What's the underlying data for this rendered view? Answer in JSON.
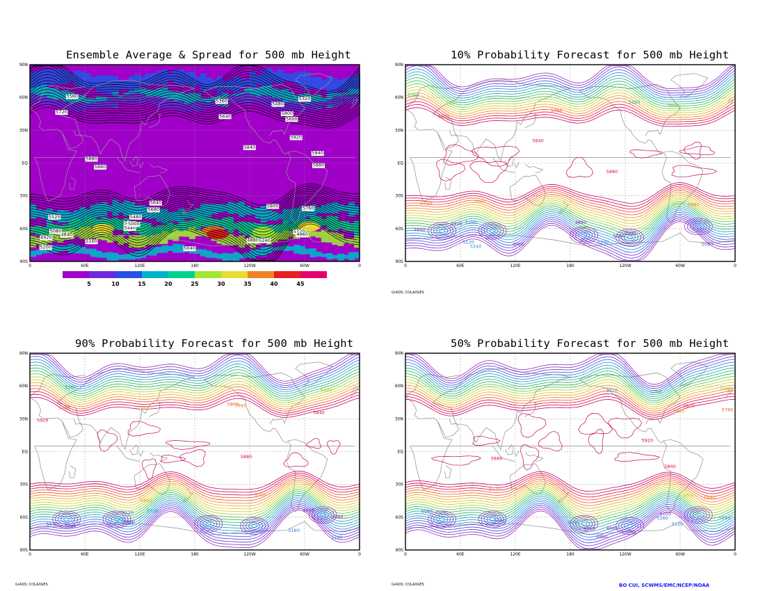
{
  "panels": [
    {
      "id": "spread",
      "title": "Ensemble Average & Spread for 500 mb Height",
      "style": "spread",
      "contour_labels": [
        "5440",
        "5480",
        "5600",
        "5320",
        "5400",
        "5360",
        "5560",
        "5480",
        "5640",
        "5680",
        "5520",
        "5720",
        "5760",
        "5800",
        "5840",
        "5880",
        "5920",
        "5800",
        "5880",
        "5640",
        "5840",
        "5880",
        "5240",
        "5200",
        "5160",
        "5120",
        "5080",
        "4960",
        "4920",
        "5000",
        "5040",
        "4880",
        "4840"
      ]
    },
    {
      "id": "p10",
      "title": "10% Probability Forecast for 500 mb Height",
      "style": "prob",
      "contour_labels": [
        "5440",
        "5600",
        "5760",
        "5800",
        "5840",
        "5880",
        "5640",
        "5680",
        "5720",
        "5520",
        "5480",
        "5320",
        "5240",
        "5160",
        "5080",
        "5040",
        "4960",
        "4920",
        "4880",
        "4840",
        "5000",
        "5120",
        "5200",
        "5360"
      ]
    },
    {
      "id": "p90",
      "title": "90% Probability Forecast for 500 mb Height",
      "style": "prob",
      "contour_labels": [
        "5600",
        "5480",
        "5360",
        "5320",
        "5760",
        "5720",
        "5800",
        "5840",
        "5880",
        "5920",
        "5640",
        "5680",
        "5240",
        "5200",
        "5160",
        "5080",
        "5040",
        "4960",
        "4920",
        "4880",
        "5000",
        "5120"
      ]
    },
    {
      "id": "p50",
      "title": "50% Probability Forecast for 500 mb Height",
      "style": "prob",
      "contour_labels": [
        "5600",
        "5480",
        "5360",
        "5320",
        "5760",
        "5720",
        "5800",
        "5840",
        "5880",
        "5920",
        "5640",
        "5680",
        "5240",
        "5200",
        "5160",
        "5080",
        "5040",
        "4960",
        "4920",
        "4880",
        "5000",
        "5120"
      ]
    }
  ],
  "axes": {
    "lat_labels": [
      "90N",
      "60N",
      "30N",
      "EQ",
      "30S",
      "60S",
      "90S"
    ],
    "lon_labels": [
      "0",
      "60E",
      "120E",
      "180",
      "120W",
      "60W",
      "0"
    ]
  },
  "colorbar": {
    "labels": [
      "5",
      "10",
      "15",
      "20",
      "25",
      "30",
      "35",
      "40",
      "45"
    ],
    "colors": [
      "#a000c8",
      "#6e28dc",
      "#2850e6",
      "#00b4c8",
      "#00d28c",
      "#a0e632",
      "#e6dc32",
      "#f08228",
      "#e61e1e",
      "#e6006e"
    ]
  },
  "credits": {
    "grads_text": "GrADS: COLA/IGES",
    "author_text": "BO CUI, SCWMS/EMC/NCEP/NOAA"
  },
  "contour_colors": {
    "band_order_high_to_low": [
      "#c8005a",
      "#e6003c",
      "#f04b23",
      "#f07d14",
      "#e6a514",
      "#d2c814",
      "#a5d21e",
      "#5ac832",
      "#1eb45a",
      "#14a596",
      "#1e96c8",
      "#2878dc",
      "#3c50e6",
      "#5a32d2",
      "#7828c8",
      "#9628b4"
    ]
  }
}
